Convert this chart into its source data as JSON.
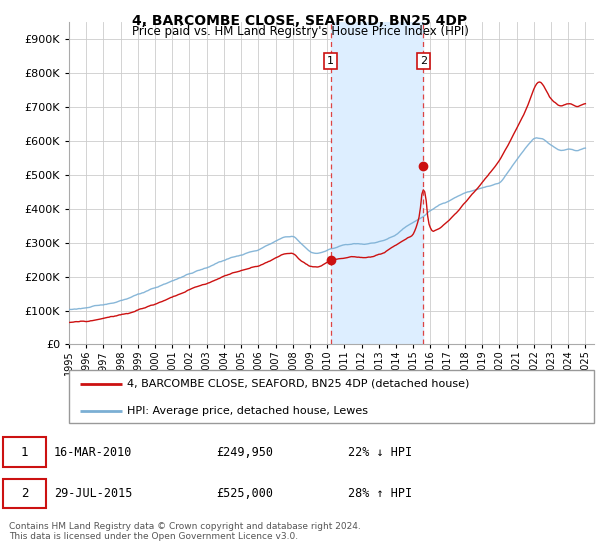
{
  "title": "4, BARCOMBE CLOSE, SEAFORD, BN25 4DP",
  "subtitle": "Price paid vs. HM Land Registry's House Price Index (HPI)",
  "footer": "Contains HM Land Registry data © Crown copyright and database right 2024.\nThis data is licensed under the Open Government Licence v3.0.",
  "legend_line1": "4, BARCOMBE CLOSE, SEAFORD, BN25 4DP (detached house)",
  "legend_line2": "HPI: Average price, detached house, Lewes",
  "transaction1_date": "16-MAR-2010",
  "transaction1_price": "£249,950",
  "transaction1_hpi": "22% ↓ HPI",
  "transaction2_date": "29-JUL-2015",
  "transaction2_price": "£525,000",
  "transaction2_hpi": "28% ↑ HPI",
  "transaction1_year": 2010.2,
  "transaction2_year": 2015.58,
  "t1_price_paid": 249950,
  "t2_price_paid": 525000,
  "hpi_color": "#7bafd4",
  "price_color": "#cc1111",
  "shaded_region_color": "#ddeeff",
  "vline_color": "#dd4444",
  "ylim_min": 0,
  "ylim_max": 950000,
  "xmin": 1995,
  "xmax": 2025.5,
  "hpi_anchors_y": [
    1995,
    1996,
    1997,
    1998,
    1999,
    2000,
    2001,
    2002,
    2003,
    2004,
    2005,
    2006,
    2007,
    2007.5,
    2008,
    2008.5,
    2009,
    2009.5,
    2010,
    2010.5,
    2011,
    2011.5,
    2012,
    2012.5,
    2013,
    2013.5,
    2014,
    2014.5,
    2015,
    2015.5,
    2016,
    2016.5,
    2017,
    2017.5,
    2018,
    2018.5,
    2019,
    2019.5,
    2020,
    2020.5,
    2021,
    2021.5,
    2022,
    2022.5,
    2023,
    2023.5,
    2024,
    2024.5,
    2025
  ],
  "hpi_anchors_v": [
    103000,
    108000,
    118000,
    130000,
    148000,
    168000,
    190000,
    210000,
    228000,
    250000,
    265000,
    280000,
    305000,
    318000,
    320000,
    295000,
    272000,
    268000,
    278000,
    288000,
    295000,
    298000,
    295000,
    298000,
    302000,
    312000,
    325000,
    345000,
    360000,
    375000,
    395000,
    410000,
    420000,
    435000,
    448000,
    455000,
    462000,
    468000,
    475000,
    510000,
    545000,
    580000,
    610000,
    605000,
    585000,
    570000,
    575000,
    570000,
    580000
  ],
  "pp_anchors_y": [
    1995,
    1996,
    1997,
    1998,
    1999,
    2000,
    2001,
    2002,
    2003,
    2004,
    2005,
    2006,
    2007,
    2007.5,
    2008,
    2008.5,
    2009,
    2009.5,
    2010,
    2010.2,
    2010.5,
    2011,
    2011.5,
    2012,
    2012.5,
    2013,
    2013.5,
    2014,
    2014.5,
    2015,
    2015.4,
    2015.58,
    2015.7,
    2016,
    2016.5,
    2017,
    2017.5,
    2018,
    2018.5,
    2019,
    2019.5,
    2020,
    2020.5,
    2021,
    2021.5,
    2022,
    2022.3,
    2022.6,
    2023,
    2023.5,
    2024,
    2024.5,
    2025
  ],
  "pp_anchors_v": [
    65000,
    68000,
    76000,
    88000,
    102000,
    120000,
    140000,
    162000,
    180000,
    202000,
    218000,
    232000,
    255000,
    268000,
    268000,
    245000,
    228000,
    228000,
    242000,
    249950,
    252000,
    255000,
    258000,
    255000,
    258000,
    265000,
    278000,
    295000,
    310000,
    325000,
    390000,
    525000,
    390000,
    330000,
    340000,
    365000,
    390000,
    420000,
    450000,
    480000,
    510000,
    545000,
    590000,
    640000,
    690000,
    760000,
    780000,
    755000,
    720000,
    700000,
    710000,
    700000,
    710000
  ]
}
